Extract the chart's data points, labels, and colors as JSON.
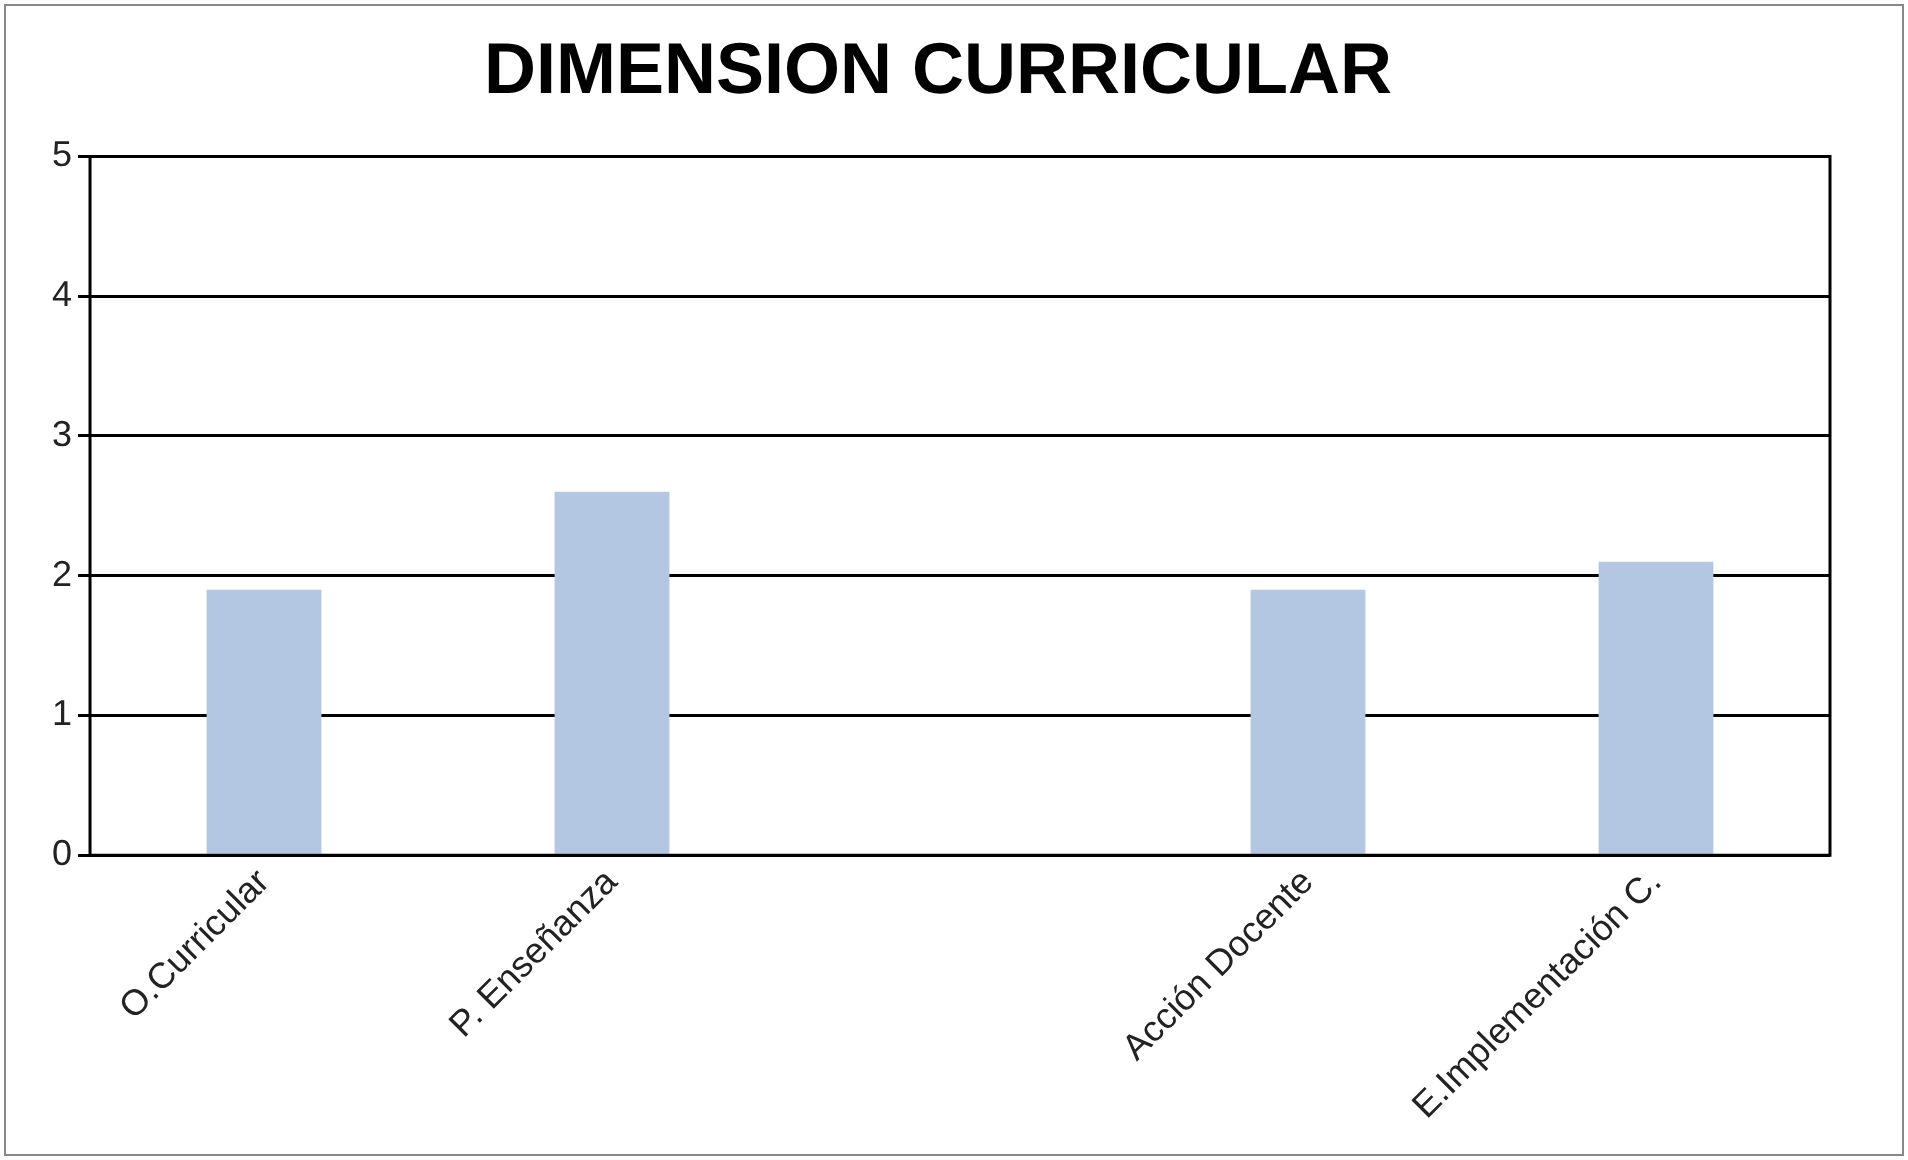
{
  "chart_data": {
    "type": "bar",
    "title": "DIMENSION CURRICULAR",
    "categories": [
      "O.Curricular",
      "P. Enseñanza",
      null,
      "Acción Docente",
      "E.Implementación C."
    ],
    "values": [
      1.9,
      2.6,
      null,
      1.9,
      2.1
    ],
    "color": "#b4c7e2",
    "ylim": [
      0,
      5
    ],
    "yticks": [
      0,
      1,
      2,
      3,
      4,
      5
    ],
    "grid": "y",
    "legend": false
  }
}
